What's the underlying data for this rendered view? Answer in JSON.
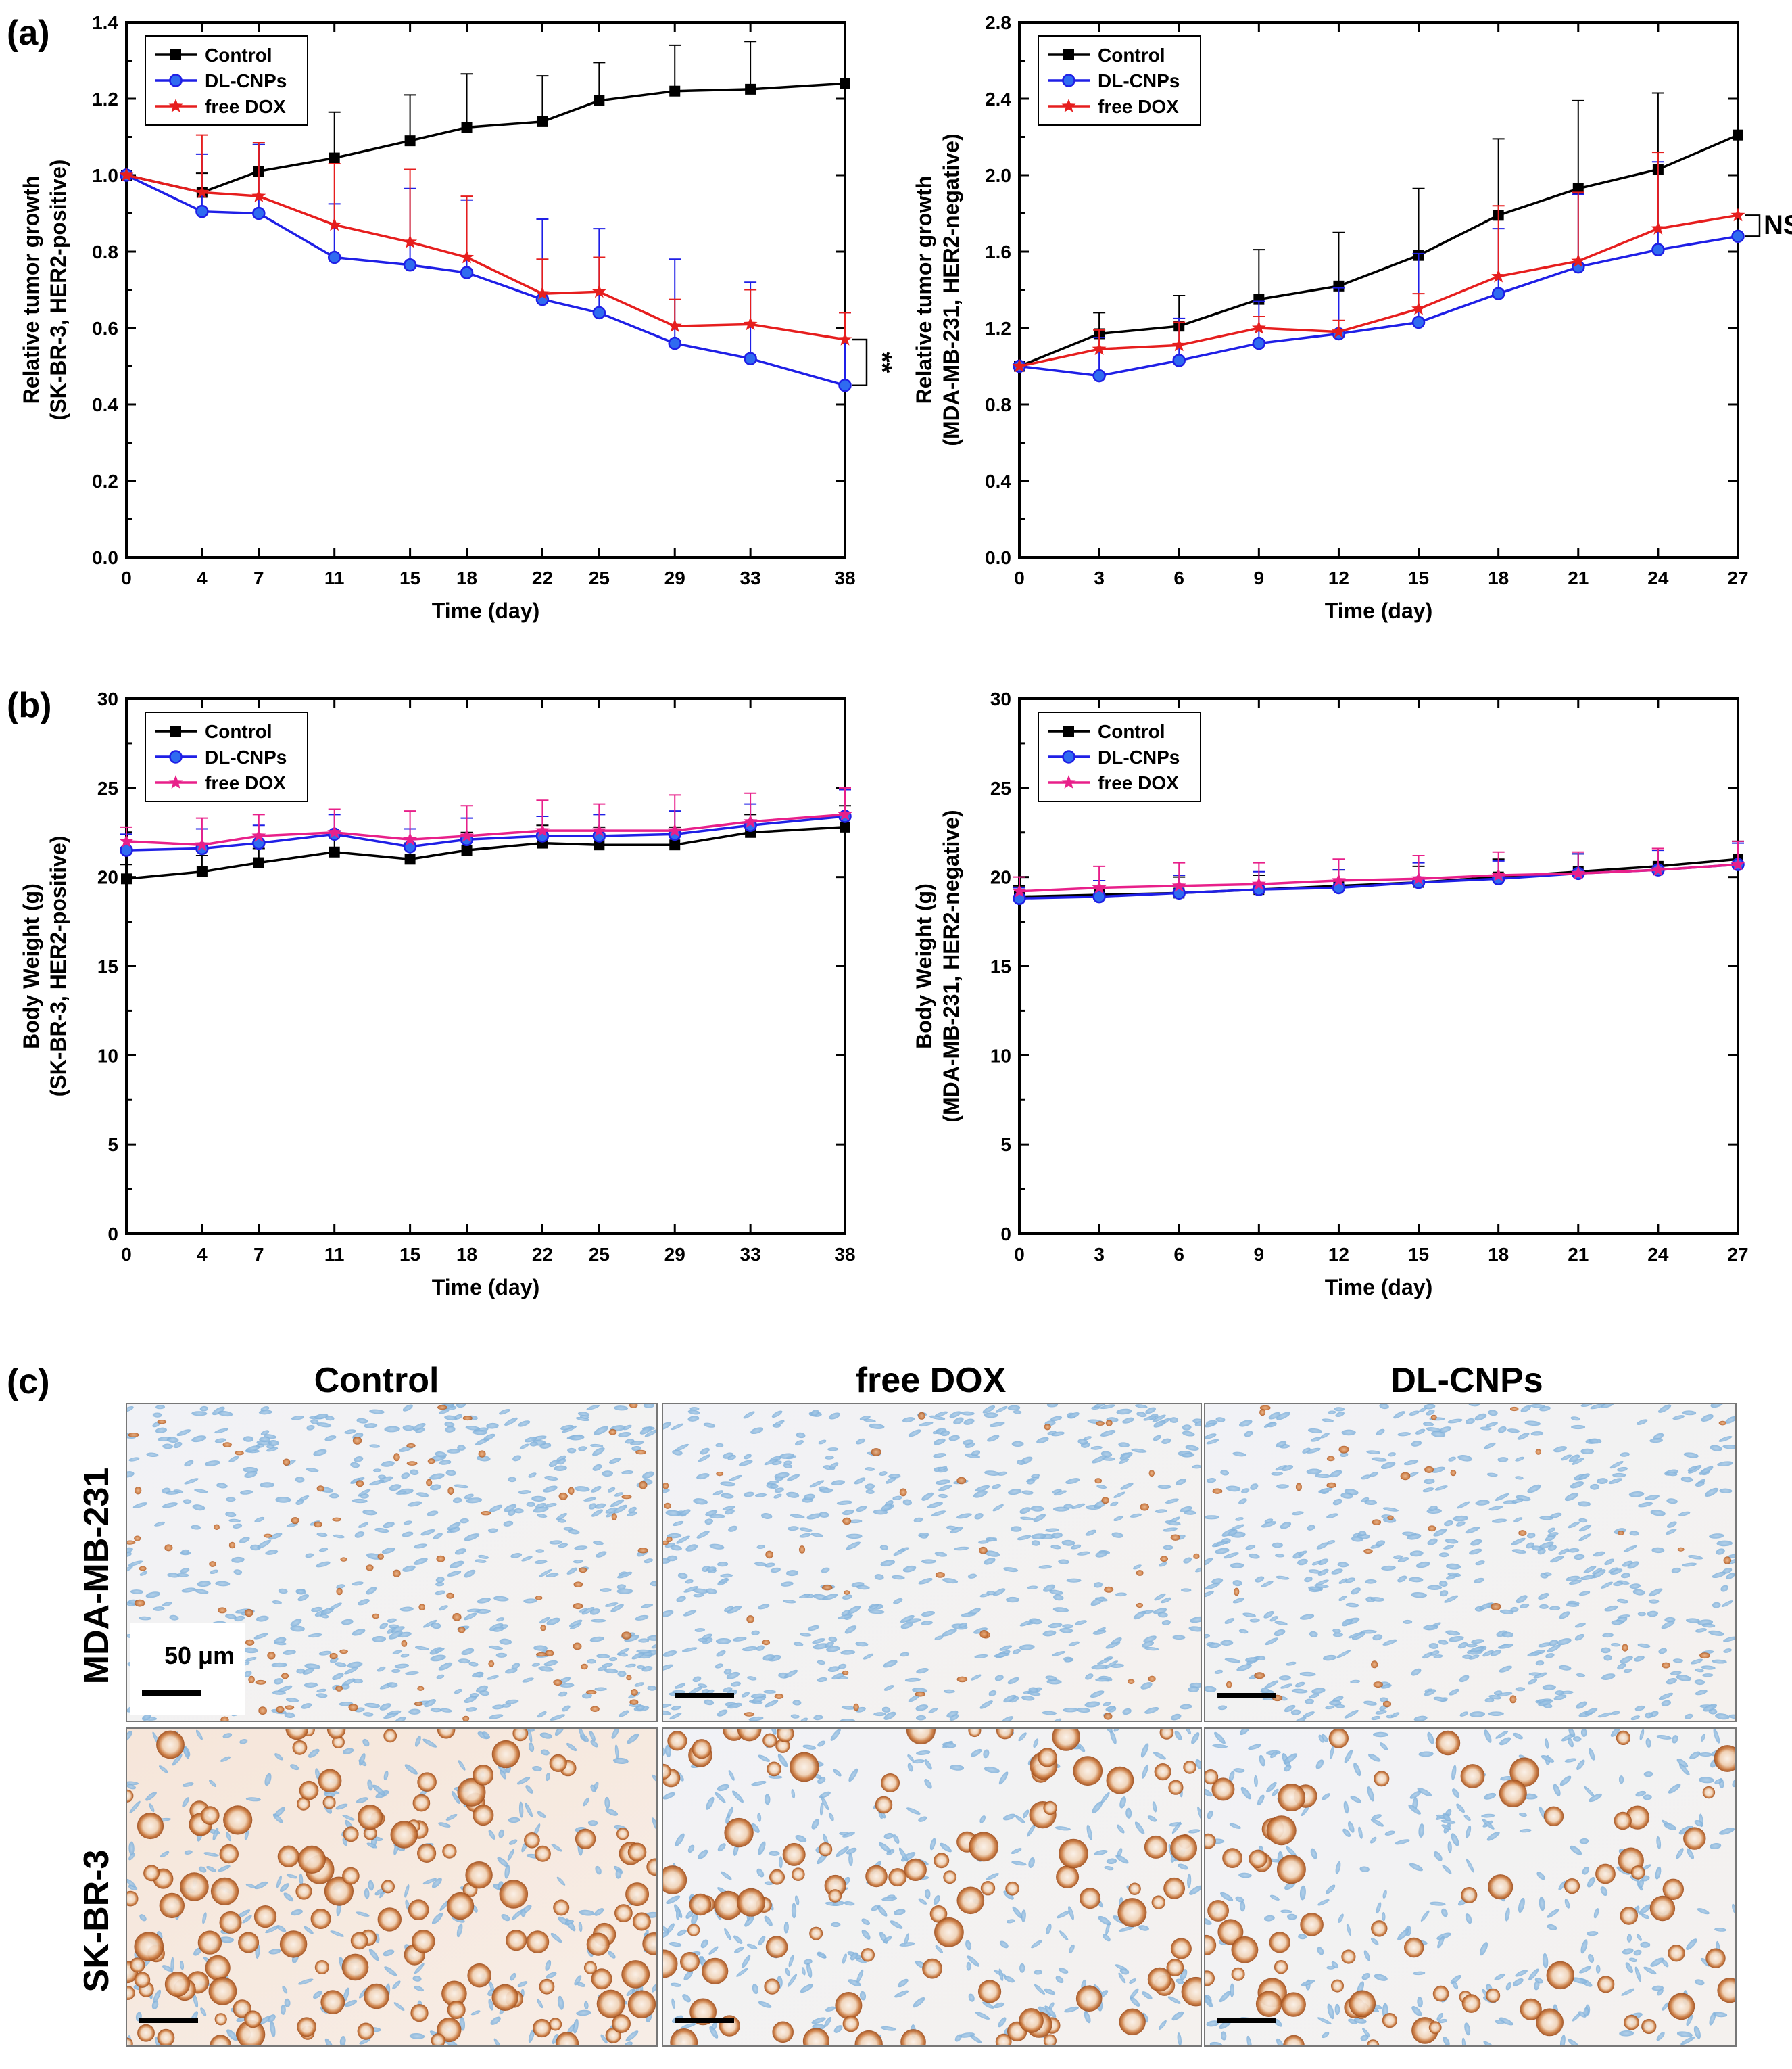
{
  "figure": {
    "panel_a_label": "(a)",
    "panel_b_label": "(b)",
    "panel_c_label": "(c)"
  },
  "chart_data": [
    {
      "id": "a_left",
      "type": "line",
      "xlabel": "Time (day)",
      "ylabel": [
        "Relative tumor growth",
        "(SK-BR-3, HER2-positive)"
      ],
      "xlim": [
        0,
        38
      ],
      "ylim": [
        0,
        1.4
      ],
      "xticks": [
        0,
        4,
        7,
        11,
        15,
        18,
        22,
        25,
        29,
        33,
        38
      ],
      "yticks": [
        0.0,
        0.2,
        0.4,
        0.6,
        0.8,
        1.0,
        1.2,
        1.4
      ],
      "ytick_labels": [
        "0.0",
        "0.2",
        "0.4",
        "0.6",
        "0.8",
        "1.0",
        "1.2",
        "1.4"
      ],
      "legend": "top-left",
      "annotation": "**",
      "annotation_between": [
        "free DOX",
        "DL-CNPs"
      ],
      "x": [
        0,
        4,
        7,
        11,
        15,
        18,
        22,
        25,
        29,
        33,
        38
      ],
      "series": [
        {
          "name": "Control",
          "color": "#000000",
          "marker": "square",
          "values": [
            1.0,
            0.955,
            1.01,
            1.045,
            1.09,
            1.125,
            1.14,
            1.195,
            1.22,
            1.225,
            1.24
          ],
          "err": [
            0,
            0.05,
            0.07,
            0.12,
            0.12,
            0.14,
            0.12,
            0.1,
            0.12,
            0.125,
            0
          ]
        },
        {
          "name": "DL-CNPs",
          "color": "#1f1fe6",
          "marker": "circle",
          "values": [
            1.0,
            0.905,
            0.9,
            0.785,
            0.765,
            0.745,
            0.675,
            0.64,
            0.56,
            0.52,
            0.45
          ],
          "err": [
            0,
            0.15,
            0.18,
            0.14,
            0.2,
            0.19,
            0.21,
            0.22,
            0.22,
            0.2,
            0.19
          ]
        },
        {
          "name": "free DOX",
          "color": "#e61e1e",
          "marker": "star",
          "values": [
            1.0,
            0.955,
            0.945,
            0.87,
            0.825,
            0.785,
            0.69,
            0.695,
            0.605,
            0.61,
            0.57
          ],
          "err": [
            0,
            0.15,
            0.14,
            0.16,
            0.19,
            0.16,
            0.09,
            0.09,
            0.07,
            0.09,
            0.07
          ]
        }
      ]
    },
    {
      "id": "a_right",
      "type": "line",
      "xlabel": "Time (day)",
      "ylabel": [
        "Relative tumor growth",
        "(MDA-MB-231, HER2-negative)"
      ],
      "xlim": [
        0,
        27
      ],
      "ylim": [
        0,
        2.8
      ],
      "xticks": [
        0,
        3,
        6,
        9,
        12,
        15,
        18,
        21,
        24,
        27
      ],
      "yticks": [
        0.0,
        0.4,
        0.8,
        1.2,
        1.6,
        2.0,
        2.4,
        2.8
      ],
      "ytick_labels": [
        "0.0",
        "0.4",
        "0.8",
        "1.2",
        "1.6",
        "2.0",
        "2.4",
        "2.8"
      ],
      "legend": "top-left",
      "annotation": "NS",
      "annotation_between": [
        "free DOX",
        "DL-CNPs"
      ],
      "x": [
        0,
        3,
        6,
        9,
        12,
        15,
        18,
        21,
        24,
        27
      ],
      "series": [
        {
          "name": "Control",
          "color": "#000000",
          "marker": "square",
          "values": [
            1.0,
            1.17,
            1.21,
            1.35,
            1.42,
            1.58,
            1.79,
            1.93,
            2.03,
            2.21
          ],
          "err": [
            0,
            0.11,
            0.16,
            0.26,
            0.28,
            0.35,
            0.4,
            0.46,
            0.4,
            0
          ]
        },
        {
          "name": "DL-CNPs",
          "color": "#1f1fe6",
          "marker": "circle",
          "values": [
            1.0,
            0.95,
            1.03,
            1.12,
            1.17,
            1.23,
            1.38,
            1.52,
            1.61,
            1.68
          ],
          "err": [
            0,
            0.2,
            0.22,
            0.22,
            0.24,
            0.36,
            0.34,
            0.38,
            0.46,
            0
          ]
        },
        {
          "name": "free DOX",
          "color": "#e61e1e",
          "marker": "star",
          "values": [
            1.0,
            1.09,
            1.11,
            1.2,
            1.18,
            1.3,
            1.47,
            1.55,
            1.72,
            1.79
          ],
          "err": [
            0,
            0.1,
            0.12,
            0.06,
            0.06,
            0.08,
            0.37,
            0.36,
            0.4,
            0
          ]
        }
      ]
    },
    {
      "id": "b_left",
      "type": "line",
      "xlabel": "Time (day)",
      "ylabel": [
        "Body Weight (g)",
        "(SK-BR-3, HER2-positive)"
      ],
      "xlim": [
        0,
        38
      ],
      "ylim": [
        0,
        30
      ],
      "xticks": [
        0,
        4,
        7,
        11,
        15,
        18,
        22,
        25,
        29,
        33,
        38
      ],
      "yticks": [
        0,
        5,
        10,
        15,
        20,
        25,
        30
      ],
      "ytick_labels": [
        "0",
        "5",
        "10",
        "15",
        "20",
        "25",
        "30"
      ],
      "legend": "top-left",
      "x": [
        0,
        4,
        7,
        11,
        15,
        18,
        22,
        25,
        29,
        33,
        38
      ],
      "series": [
        {
          "name": "Control",
          "color": "#000000",
          "marker": "square",
          "values": [
            19.9,
            20.3,
            20.8,
            21.4,
            21.0,
            21.5,
            21.9,
            21.8,
            21.8,
            22.5,
            22.8
          ],
          "err": [
            0.8,
            0.9,
            0.8,
            0.9,
            0.9,
            1.0,
            1.0,
            1.0,
            1.0,
            1.0,
            1.2
          ]
        },
        {
          "name": "DL-CNPs",
          "color": "#1f1fe6",
          "marker": "circle",
          "values": [
            21.5,
            21.6,
            21.9,
            22.4,
            21.7,
            22.1,
            22.3,
            22.3,
            22.4,
            22.9,
            23.4
          ],
          "err": [
            0.9,
            1.1,
            1.0,
            1.1,
            1.0,
            1.2,
            1.1,
            1.2,
            1.3,
            1.2,
            1.5
          ]
        },
        {
          "name": "free DOX",
          "color": "#e8208a",
          "marker": "star",
          "values": [
            22.0,
            21.8,
            22.3,
            22.5,
            22.1,
            22.3,
            22.6,
            22.6,
            22.6,
            23.1,
            23.5
          ],
          "err": [
            0.8,
            1.5,
            1.2,
            1.3,
            1.6,
            1.7,
            1.7,
            1.5,
            2.0,
            1.6,
            1.5
          ]
        }
      ]
    },
    {
      "id": "b_right",
      "type": "line",
      "xlabel": "Time (day)",
      "ylabel": [
        "Body Weight (g)",
        "(MDA-MB-231, HER2-negative)"
      ],
      "xlim": [
        0,
        27
      ],
      "ylim": [
        0,
        30
      ],
      "xticks": [
        0,
        3,
        6,
        9,
        12,
        15,
        18,
        21,
        24,
        27
      ],
      "yticks": [
        0,
        5,
        10,
        15,
        20,
        25,
        30
      ],
      "ytick_labels": [
        "0",
        "5",
        "10",
        "15",
        "20",
        "25",
        "30"
      ],
      "legend": "top-left",
      "x": [
        0,
        3,
        6,
        9,
        12,
        15,
        18,
        21,
        24,
        27
      ],
      "series": [
        {
          "name": "Control",
          "color": "#000000",
          "marker": "square",
          "values": [
            18.9,
            19.0,
            19.1,
            19.3,
            19.5,
            19.7,
            20.0,
            20.3,
            20.6,
            21.0
          ],
          "err": [
            0.6,
            0.8,
            0.9,
            0.8,
            0.9,
            0.9,
            1.0,
            1.0,
            1.0,
            1.0
          ]
        },
        {
          "name": "DL-CNPs",
          "color": "#1f1fe6",
          "marker": "circle",
          "values": [
            18.8,
            18.9,
            19.1,
            19.3,
            19.4,
            19.7,
            19.9,
            20.2,
            20.4,
            20.7
          ],
          "err": [
            0.6,
            0.9,
            1.0,
            1.0,
            1.0,
            1.1,
            1.0,
            1.1,
            1.1,
            1.2
          ]
        },
        {
          "name": "free DOX",
          "color": "#e8208a",
          "marker": "star",
          "values": [
            19.2,
            19.4,
            19.5,
            19.6,
            19.8,
            19.9,
            20.1,
            20.2,
            20.4,
            20.7
          ],
          "err": [
            0.8,
            1.2,
            1.3,
            1.2,
            1.2,
            1.3,
            1.3,
            1.2,
            1.2,
            1.3
          ]
        }
      ]
    }
  ],
  "histology": {
    "columns": [
      "Control",
      "free DOX",
      "DL-CNPs"
    ],
    "rows": [
      "MDA-MB-231",
      "SK-BR-3"
    ],
    "scale_bar_label": "50 μm"
  }
}
